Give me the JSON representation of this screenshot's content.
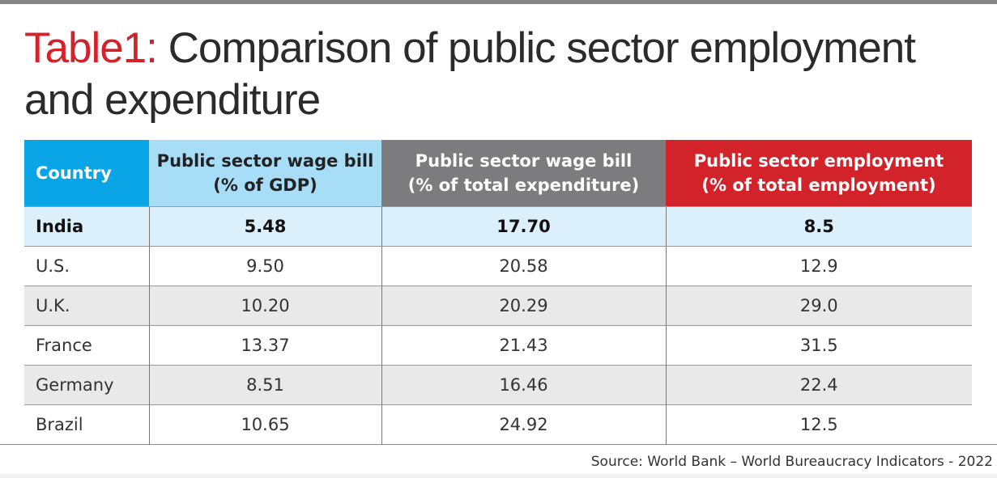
{
  "title": {
    "lead": "Table1:",
    "text": "Comparison of public sector employment and expenditure"
  },
  "colors": {
    "country_header": "#0aa5e6",
    "wage_gdp_header": "#a8ddf7",
    "wage_exp_header": "#7c7c7e",
    "employment_header": "#d2232a",
    "highlight_row": "#dcf0fb",
    "alt_row": "#e9e9ea"
  },
  "chart_data": {
    "type": "table",
    "columns": [
      "Country",
      "Public sector wage bill (% of GDP)",
      "Public sector wage bill (% of total expenditure)",
      "Public sector employment (% of total employment)"
    ],
    "rows": [
      [
        "India",
        "5.48",
        "17.70",
        "8.5"
      ],
      [
        "U.S.",
        "9.50",
        "20.58",
        "12.9"
      ],
      [
        "U.K.",
        "10.20",
        "20.29",
        "29.0"
      ],
      [
        "France",
        "13.37",
        "21.43",
        "31.5"
      ],
      [
        "Germany",
        "8.51",
        "16.46",
        "22.4"
      ],
      [
        "Brazil",
        "10.65",
        "24.92",
        "12.5"
      ]
    ]
  },
  "header_lines": [
    [
      "Country"
    ],
    [
      "Public sector wage bill",
      "(% of GDP)"
    ],
    [
      "Public sector wage bill",
      "(% of total expenditure)"
    ],
    [
      "Public sector employment",
      "(% of total employment)"
    ]
  ],
  "source": "Source: World Bank – World Bureaucracy Indicators - 2022"
}
